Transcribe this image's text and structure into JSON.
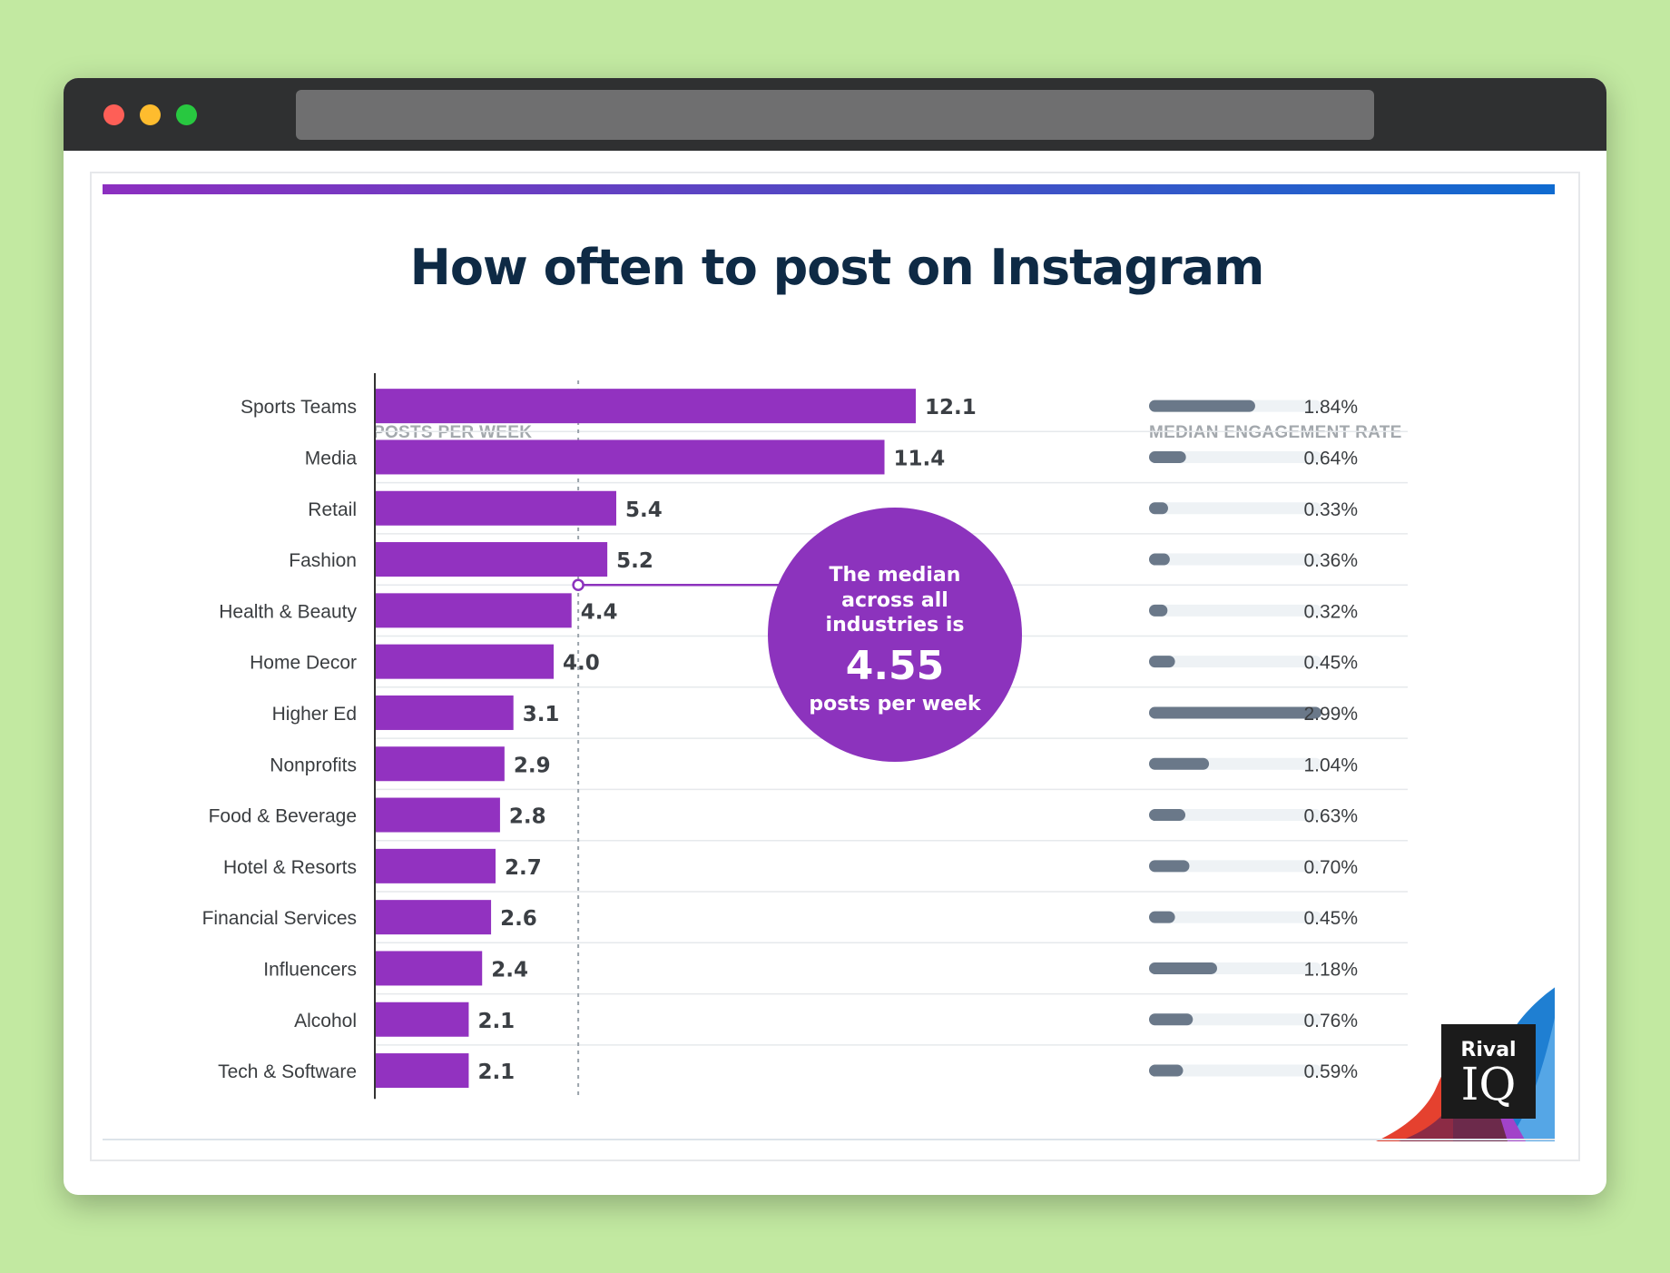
{
  "chart_data": {
    "type": "bar",
    "title": "How often to post on Instagram",
    "xlabel": "POSTS PER WEEK",
    "secondary_label": "MEDIAN ENGAGEMENT RATE",
    "categories": [
      "Sports Teams",
      "Media",
      "Retail",
      "Fashion",
      "Health & Beauty",
      "Home Decor",
      "Higher Ed",
      "Nonprofits",
      "Food & Beverage",
      "Hotel & Resorts",
      "Financial Services",
      "Influencers",
      "Alcohol",
      "Tech & Software"
    ],
    "series": [
      {
        "values": [
          12.1,
          11.4,
          5.4,
          5.2,
          4.4,
          4.0,
          3.1,
          2.9,
          2.8,
          2.7,
          2.6,
          2.4,
          2.1,
          2.1
        ],
        "labels": [
          "12.1",
          "11.4",
          "5.4",
          "5.2",
          "4.4",
          "4.0",
          "3.1",
          "2.9",
          "2.8",
          "2.7",
          "2.6",
          "2.4",
          "2.1",
          "2.1"
        ]
      },
      {
        "values": [
          1.84,
          0.64,
          0.33,
          0.36,
          0.32,
          0.45,
          2.99,
          1.04,
          0.63,
          0.7,
          0.45,
          1.18,
          0.76,
          0.59
        ],
        "labels": [
          "1.84%",
          "0.64%",
          "0.33%",
          "0.36%",
          "0.32%",
          "0.45%",
          "2.99%",
          "1.04%",
          "0.63%",
          "0.70%",
          "0.45%",
          "1.18%",
          "0.76%",
          "0.59%"
        ]
      }
    ],
    "median": 4.55,
    "xlim": [
      0,
      12.1
    ],
    "engagement_lim": [
      0,
      2.99
    ],
    "annotation": {
      "lines": [
        "The median",
        "across all",
        "industries is"
      ],
      "value": "4.55",
      "unit": "posts per week"
    },
    "colors": {
      "bar": "#9232c0",
      "bubble": "#8c33bd",
      "engagement_bar": "#6a7889",
      "engagement_track": "#eef2f5",
      "title": "#0e2a45"
    },
    "grid": false
  },
  "logo": {
    "line1": "Rival",
    "line2": "IQ"
  }
}
